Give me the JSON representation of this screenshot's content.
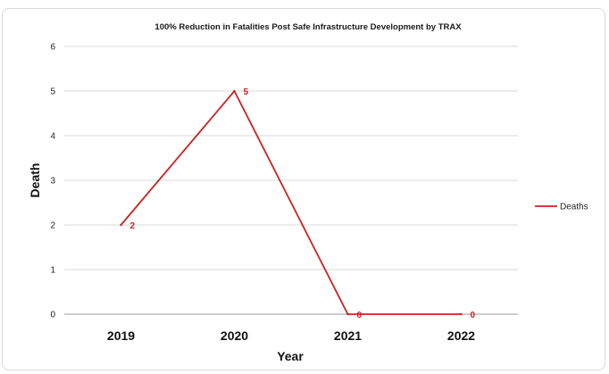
{
  "chart_data": {
    "type": "line",
    "title": "100% Reduction in Fatalities Post Safe  Infrastructure Development by  TRAX",
    "xlabel": "Year",
    "ylabel": "Death",
    "categories": [
      "2019",
      "2020",
      "2021",
      "2022"
    ],
    "series": [
      {
        "name": "Deaths",
        "values": [
          2,
          5,
          0,
          0
        ],
        "color": "#cc2222"
      }
    ],
    "ylim": [
      0,
      6
    ],
    "yticks": [
      "0",
      "1",
      "2",
      "3",
      "4",
      "5",
      "6"
    ],
    "grid": true,
    "legend": "right",
    "data_labels": true
  }
}
